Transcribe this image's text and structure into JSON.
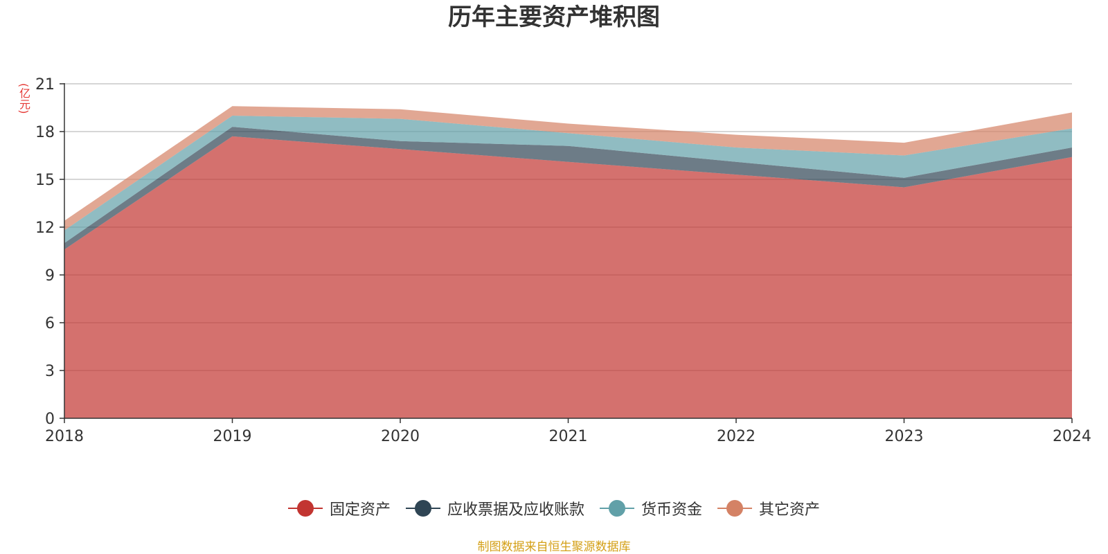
{
  "chart_data": {
    "type": "area",
    "stacked": true,
    "title": "历年主要资产堆积图",
    "unit_label": "(亿元)",
    "x": [
      "2018",
      "2019",
      "2020",
      "2021",
      "2022",
      "2023",
      "2024"
    ],
    "ylim": [
      0,
      21
    ],
    "yticks": [
      0,
      3,
      6,
      9,
      12,
      15,
      18,
      21
    ],
    "grid": true,
    "legend_position": "bottom",
    "series": [
      {
        "name": "固定资产",
        "color": "#c23531",
        "values": [
          10.6,
          17.7,
          16.9,
          16.1,
          15.3,
          14.5,
          16.4
        ]
      },
      {
        "name": "应收票据及应收账款",
        "color": "#2f4554",
        "values": [
          0.4,
          0.6,
          0.5,
          1.0,
          0.8,
          0.6,
          0.6
        ]
      },
      {
        "name": "货币资金",
        "color": "#61a0a8",
        "values": [
          0.8,
          0.7,
          1.4,
          0.8,
          0.9,
          1.4,
          1.2
        ]
      },
      {
        "name": "其它资产",
        "color": "#d48265",
        "values": [
          0.6,
          0.6,
          0.6,
          0.6,
          0.8,
          0.8,
          1.0
        ]
      }
    ]
  },
  "source_note": "制图数据来自恒生聚源数据库"
}
